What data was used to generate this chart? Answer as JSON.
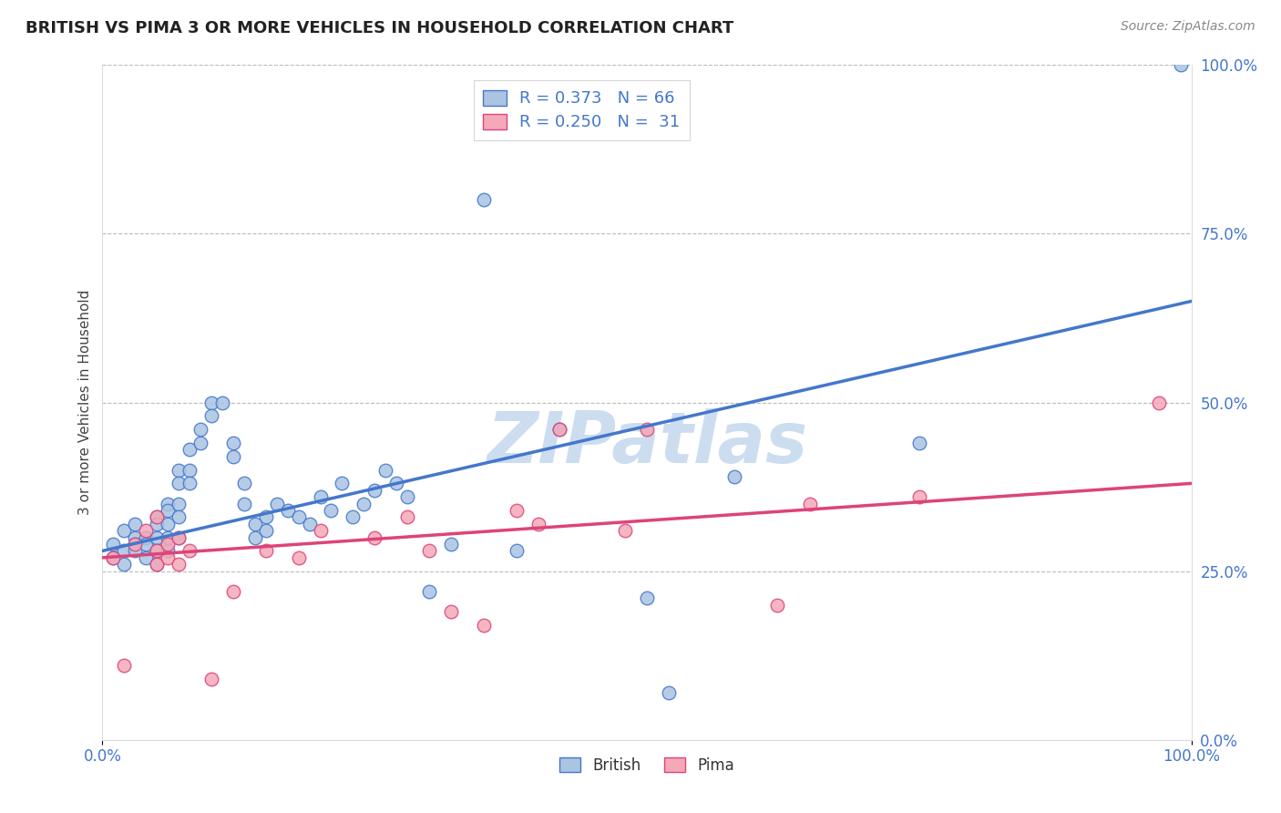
{
  "title": "BRITISH VS PIMA 3 OR MORE VEHICLES IN HOUSEHOLD CORRELATION CHART",
  "source_text": "Source: ZipAtlas.com",
  "ylabel": "3 or more Vehicles in Household",
  "xlim": [
    0,
    1.0
  ],
  "ylim": [
    0,
    1.0
  ],
  "ytick_positions": [
    0.0,
    0.25,
    0.5,
    0.75,
    1.0
  ],
  "ytick_labels": [
    "0.0%",
    "25.0%",
    "50.0%",
    "75.0%",
    "100.0%"
  ],
  "r_british": 0.373,
  "n_british": 66,
  "r_pima": 0.25,
  "n_pima": 31,
  "british_color": "#aac4e2",
  "pima_color": "#f4a8b8",
  "british_line_color": "#4477cc",
  "pima_line_color": "#dd4477",
  "watermark": "ZIPatlas",
  "watermark_color": "#ccddf0",
  "british_x": [
    0.01,
    0.01,
    0.02,
    0.02,
    0.02,
    0.03,
    0.03,
    0.03,
    0.03,
    0.04,
    0.04,
    0.04,
    0.05,
    0.05,
    0.05,
    0.05,
    0.05,
    0.06,
    0.06,
    0.06,
    0.06,
    0.06,
    0.07,
    0.07,
    0.07,
    0.07,
    0.07,
    0.08,
    0.08,
    0.08,
    0.09,
    0.09,
    0.1,
    0.1,
    0.11,
    0.12,
    0.12,
    0.13,
    0.13,
    0.14,
    0.14,
    0.15,
    0.15,
    0.16,
    0.17,
    0.18,
    0.19,
    0.2,
    0.21,
    0.22,
    0.23,
    0.24,
    0.25,
    0.26,
    0.27,
    0.28,
    0.3,
    0.32,
    0.35,
    0.38,
    0.42,
    0.5,
    0.52,
    0.58,
    0.75,
    0.99
  ],
  "british_y": [
    0.29,
    0.27,
    0.31,
    0.28,
    0.26,
    0.32,
    0.3,
    0.29,
    0.28,
    0.3,
    0.27,
    0.29,
    0.33,
    0.32,
    0.3,
    0.28,
    0.26,
    0.35,
    0.34,
    0.32,
    0.3,
    0.28,
    0.4,
    0.38,
    0.35,
    0.33,
    0.3,
    0.43,
    0.4,
    0.38,
    0.46,
    0.44,
    0.5,
    0.48,
    0.5,
    0.44,
    0.42,
    0.38,
    0.35,
    0.32,
    0.3,
    0.33,
    0.31,
    0.35,
    0.34,
    0.33,
    0.32,
    0.36,
    0.34,
    0.38,
    0.33,
    0.35,
    0.37,
    0.4,
    0.38,
    0.36,
    0.22,
    0.29,
    0.8,
    0.28,
    0.46,
    0.21,
    0.07,
    0.39,
    0.44,
    1.0
  ],
  "pima_x": [
    0.01,
    0.02,
    0.03,
    0.04,
    0.05,
    0.05,
    0.05,
    0.06,
    0.06,
    0.07,
    0.07,
    0.08,
    0.1,
    0.12,
    0.15,
    0.18,
    0.2,
    0.25,
    0.28,
    0.3,
    0.32,
    0.35,
    0.38,
    0.4,
    0.42,
    0.48,
    0.5,
    0.62,
    0.65,
    0.75,
    0.97
  ],
  "pima_y": [
    0.27,
    0.11,
    0.29,
    0.31,
    0.26,
    0.28,
    0.33,
    0.29,
    0.27,
    0.26,
    0.3,
    0.28,
    0.09,
    0.22,
    0.28,
    0.27,
    0.31,
    0.3,
    0.33,
    0.28,
    0.19,
    0.17,
    0.34,
    0.32,
    0.46,
    0.31,
    0.46,
    0.2,
    0.35,
    0.36,
    0.5
  ]
}
